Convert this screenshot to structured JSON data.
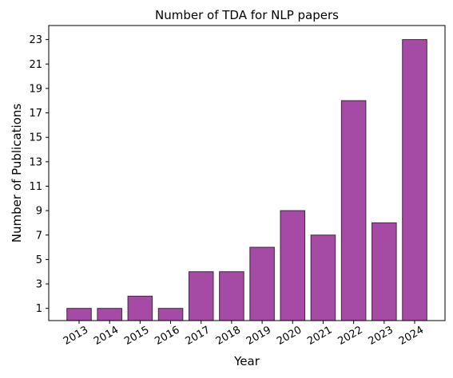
{
  "chart_data": {
    "type": "bar",
    "title": "Number of TDA for NLP papers",
    "xlabel": "Year",
    "ylabel": "Number of Publications",
    "categories": [
      "2013",
      "2014",
      "2015",
      "2016",
      "2017",
      "2018",
      "2019",
      "2020",
      "2021",
      "2022",
      "2023",
      "2024"
    ],
    "values": [
      1,
      1,
      2,
      1,
      4,
      4,
      6,
      9,
      7,
      18,
      8,
      23
    ],
    "yticks": [
      "1",
      "3",
      "5",
      "7",
      "9",
      "11",
      "13",
      "15",
      "17",
      "19",
      "21",
      "23"
    ],
    "ylim": [
      0,
      24.15
    ],
    "grid": false,
    "bar_color": "#a54aa5",
    "bar_edge_color": "#3d2a3d",
    "xtick_rotation_deg": 30
  }
}
